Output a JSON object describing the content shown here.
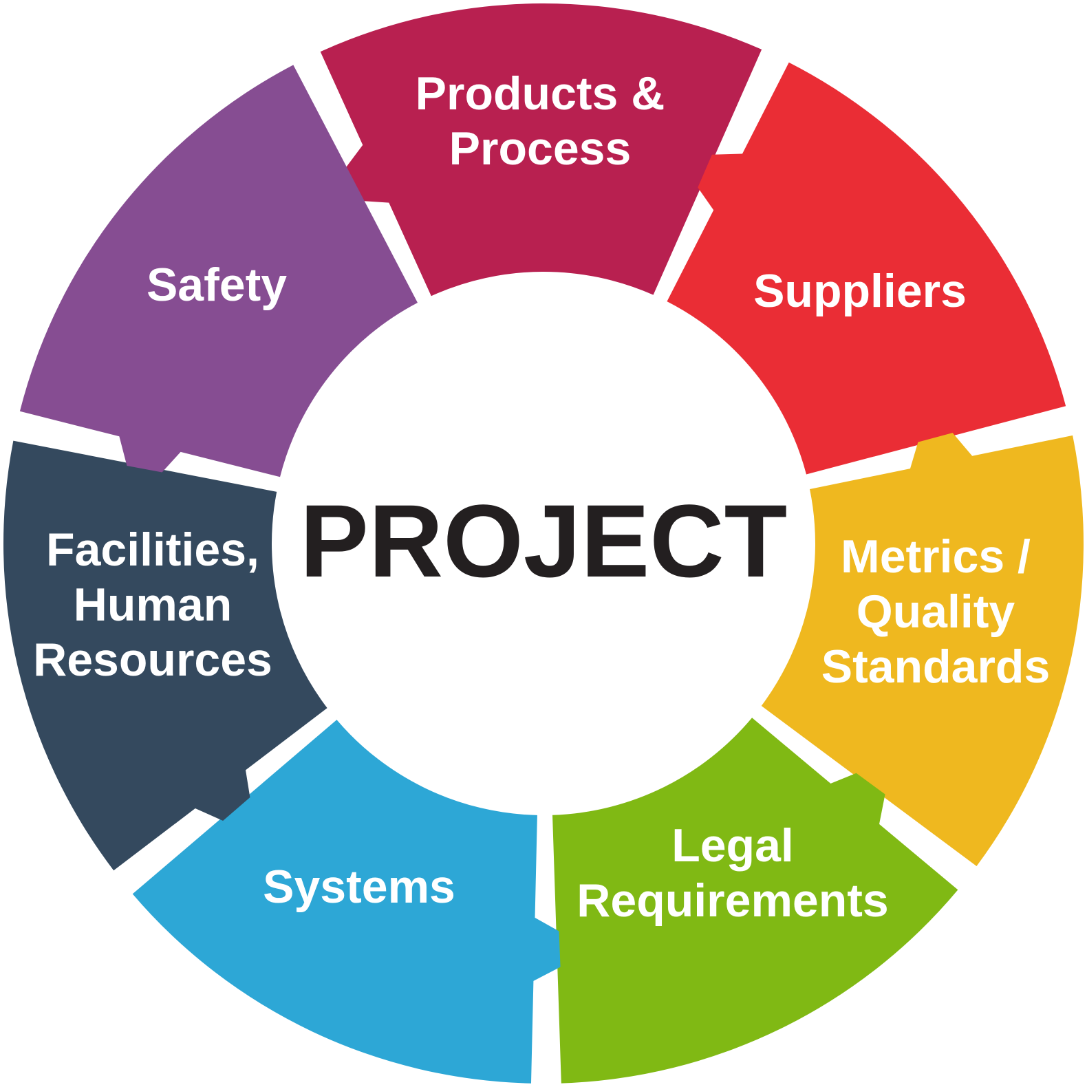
{
  "center": {
    "title": "PROJECT",
    "color": "#231f20"
  },
  "segments": [
    {
      "id": "products-process",
      "lines": [
        "Products &",
        "Process"
      ],
      "color": "#b82050"
    },
    {
      "id": "suppliers",
      "lines": [
        "Suppliers"
      ],
      "color": "#ea2d35"
    },
    {
      "id": "metrics-quality-standards",
      "lines": [
        "Metrics /",
        "Quality",
        "Standards"
      ],
      "color": "#efb81f"
    },
    {
      "id": "legal-requirements",
      "lines": [
        "Legal",
        "Requirements"
      ],
      "color": "#80b914"
    },
    {
      "id": "systems",
      "lines": [
        "Systems"
      ],
      "color": "#2da7d6"
    },
    {
      "id": "facilities-human-resources",
      "lines": [
        "Facilities,",
        "Human",
        "Resources"
      ],
      "color": "#34495e"
    },
    {
      "id": "safety",
      "lines": [
        "Safety"
      ],
      "color": "#864d92"
    }
  ]
}
